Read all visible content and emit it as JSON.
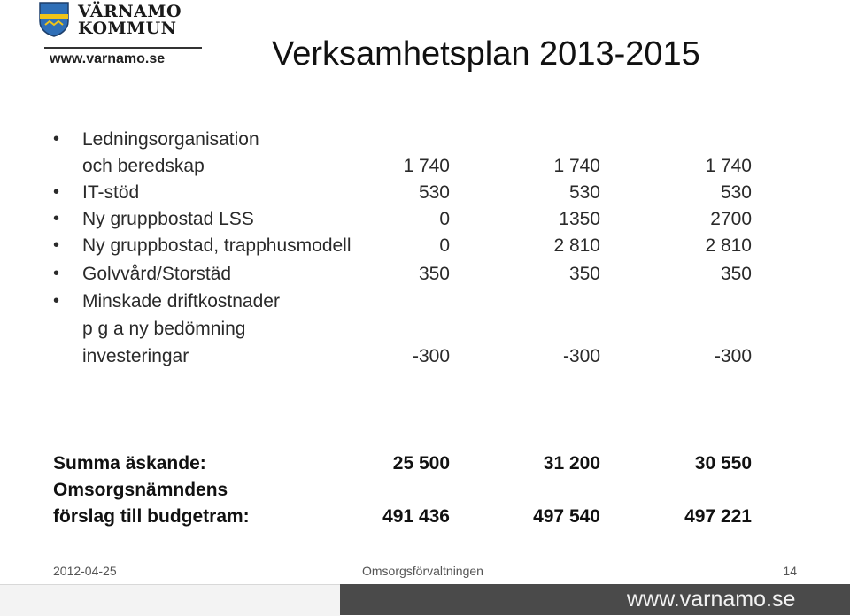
{
  "logo": {
    "line1": "VÄRNAMO",
    "line2": "KOMMUN",
    "url": "www.varnamo.se"
  },
  "title": "Verksamhetsplan 2013-2015",
  "items": [
    {
      "label_lines": [
        "Ledningsorganisation",
        "och beredskap"
      ],
      "values": [
        "1 740",
        "1 740",
        "1 740"
      ]
    },
    {
      "label_lines": [
        "IT-stöd"
      ],
      "values": [
        "530",
        "530",
        "530"
      ]
    },
    {
      "label_lines": [
        "Ny gruppbostad LSS"
      ],
      "values": [
        "0",
        "1350",
        "2700"
      ]
    },
    {
      "label_lines": [
        "Ny gruppbostad, trapphusmodell"
      ],
      "values": [
        "0",
        "2 810",
        "2 810"
      ]
    },
    {
      "label_lines": [
        "Golvvård/Storstäd"
      ],
      "values": [
        "350",
        "350",
        "350"
      ]
    },
    {
      "label_lines": [
        "Minskade driftkostnader",
        "p g a ny bedömning",
        "investeringar"
      ],
      "values": [
        "-300",
        "-300",
        "-300"
      ]
    }
  ],
  "summary": [
    {
      "label_lines": [
        "Summa äskande:"
      ],
      "values": [
        "25 500",
        "31 200",
        "30 550"
      ]
    },
    {
      "label_lines": [
        "Omsorgsnämndens",
        "förslag till budgetram:"
      ],
      "values": [
        "491 436",
        "497 540",
        "497 221"
      ]
    }
  ],
  "footer": {
    "date": "2012-04-25",
    "org": "Omsorgsförvaltningen",
    "page": "14"
  },
  "bottom_url": "www.varnamo.se",
  "colors": {
    "shield_blue": "#2f6fb7",
    "shield_gold": "#f0c419",
    "band_dark": "#4a4a4a"
  }
}
